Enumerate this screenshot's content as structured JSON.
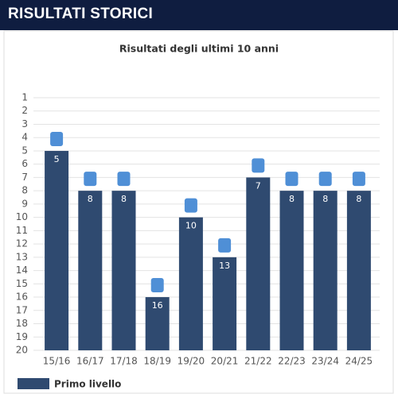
{
  "header": {
    "title": "RISULTATI STORICI"
  },
  "chart_data": {
    "type": "bar",
    "title": "Risultati degli ultimi 10 anni",
    "categories": [
      "15/16",
      "16/17",
      "17/18",
      "18/19",
      "19/20",
      "20/21",
      "21/22",
      "22/23",
      "23/24",
      "24/25"
    ],
    "series": [
      {
        "name": "Primo livello",
        "color": "#2f4a70",
        "values": [
          5,
          8,
          8,
          16,
          10,
          13,
          7,
          8,
          8,
          8
        ]
      }
    ],
    "ylim": [
      20,
      1
    ],
    "yticks": [
      1,
      2,
      3,
      4,
      5,
      6,
      7,
      8,
      9,
      10,
      11,
      12,
      13,
      14,
      15,
      16,
      17,
      18,
      19,
      20
    ],
    "grid": true
  }
}
